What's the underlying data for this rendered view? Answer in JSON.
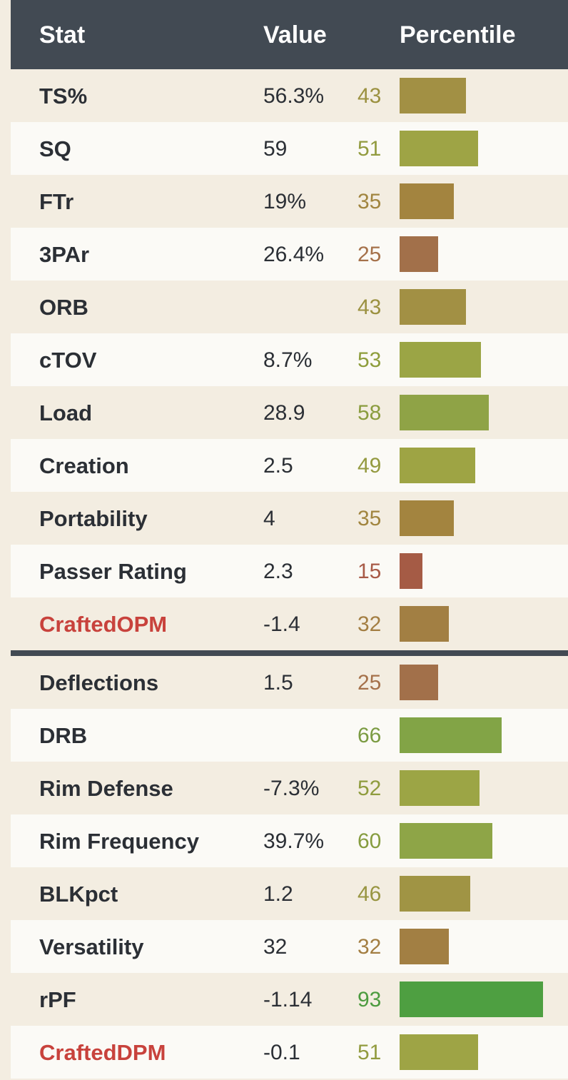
{
  "header": {
    "stat": "Stat",
    "value": "Value",
    "percentile": "Percentile"
  },
  "offense": [
    {
      "stat": "TS%",
      "value": "56.3%",
      "percentile": 43,
      "percentile_color": "#9b9140",
      "bar_color": "#a29044",
      "total": false
    },
    {
      "stat": "SQ",
      "value": "59",
      "percentile": 51,
      "percentile_color": "#929b3f",
      "bar_color": "#9ea445",
      "total": false
    },
    {
      "stat": "FTr",
      "value": "19%",
      "percentile": 35,
      "percentile_color": "#a1853f",
      "bar_color": "#a3843f",
      "total": false
    },
    {
      "stat": "3PAr",
      "value": "26.4%",
      "percentile": 25,
      "percentile_color": "#a5714a",
      "bar_color": "#a2704a",
      "total": false
    },
    {
      "stat": "ORB",
      "value": "",
      "percentile": 43,
      "percentile_color": "#9b9140",
      "bar_color": "#a29044",
      "total": false
    },
    {
      "stat": "cTOV",
      "value": "8.7%",
      "percentile": 53,
      "percentile_color": "#8e9d3c",
      "bar_color": "#9ba545",
      "total": false
    },
    {
      "stat": "Load",
      "value": "28.9",
      "percentile": 58,
      "percentile_color": "#8a9c3e",
      "bar_color": "#8fa346",
      "total": false
    },
    {
      "stat": "Creation",
      "value": "2.5",
      "percentile": 49,
      "percentile_color": "#949a40",
      "bar_color": "#9ea444",
      "total": false
    },
    {
      "stat": "Portability",
      "value": "4",
      "percentile": 35,
      "percentile_color": "#a1853f",
      "bar_color": "#a3843f",
      "total": false
    },
    {
      "stat": "Passer Rating",
      "value": "2.3",
      "percentile": 15,
      "percentile_color": "#a85a47",
      "bar_color": "#a55b45",
      "total": false
    },
    {
      "stat": "CraftedOPM",
      "value": "-1.4",
      "percentile": 32,
      "percentile_color": "#a37e42",
      "bar_color": "#a27f43",
      "total": true
    }
  ],
  "defense": [
    {
      "stat": "Deflections",
      "value": "1.5",
      "percentile": 25,
      "percentile_color": "#a5714a",
      "bar_color": "#a2704a",
      "total": false
    },
    {
      "stat": "DRB",
      "value": "",
      "percentile": 66,
      "percentile_color": "#7b9b42",
      "bar_color": "#82a446",
      "total": false
    },
    {
      "stat": "Rim Defense",
      "value": "-7.3%",
      "percentile": 52,
      "percentile_color": "#8f9c3e",
      "bar_color": "#9ca545",
      "total": false
    },
    {
      "stat": "Rim Frequency",
      "value": "39.7%",
      "percentile": 60,
      "percentile_color": "#869c3f",
      "bar_color": "#8ea547",
      "total": false
    },
    {
      "stat": "BLKpct",
      "value": "1.2",
      "percentile": 46,
      "percentile_color": "#989541",
      "bar_color": "#a09444",
      "total": false
    },
    {
      "stat": "Versatility",
      "value": "32",
      "percentile": 32,
      "percentile_color": "#a37e42",
      "bar_color": "#a27f43",
      "total": false
    },
    {
      "stat": "rPF",
      "value": "-1.14",
      "percentile": 93,
      "percentile_color": "#4c9b3f",
      "bar_color": "#4e9f41",
      "total": false
    },
    {
      "stat": "CraftedDPM",
      "value": "-0.1",
      "percentile": 51,
      "percentile_color": "#929b3f",
      "bar_color": "#9ea445",
      "total": true
    }
  ]
}
